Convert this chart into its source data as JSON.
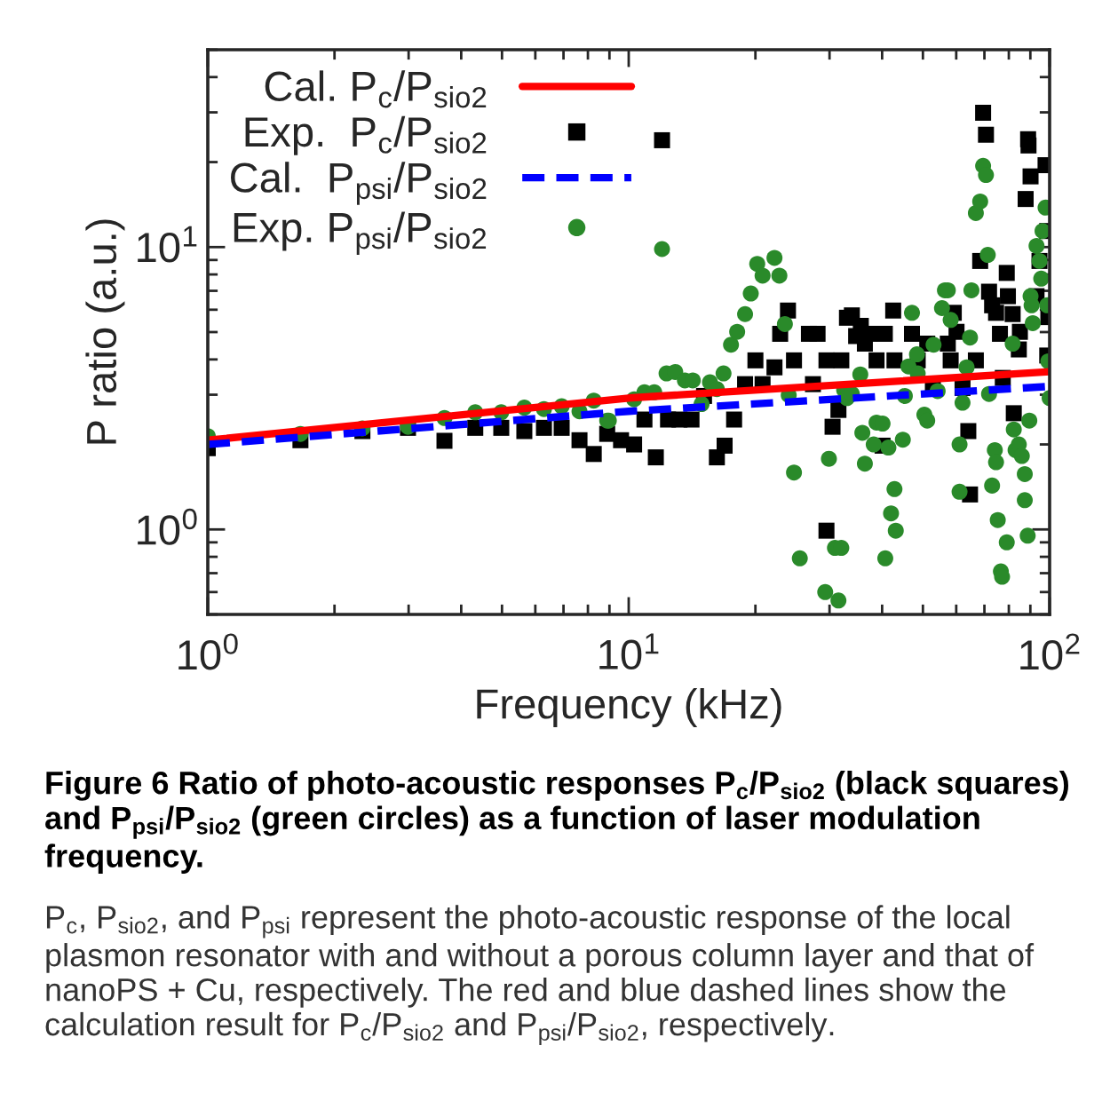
{
  "chart_data": {
    "type": "scatter",
    "xlabel": "Frequency (kHz)",
    "ylabel": "P ratio (a.u.)",
    "log": "xy",
    "xlim": [
      1,
      100
    ],
    "ylim": [
      0.5,
      50
    ],
    "xticks": [
      {
        "value": 1,
        "label": "10$^{0}$"
      },
      {
        "value": 10,
        "label": "10$^{1}$"
      },
      {
        "value": 100,
        "label": "10$^{2}$"
      }
    ],
    "yticks": [
      {
        "value": 1,
        "label": "10$^{0}$"
      },
      {
        "value": 10,
        "label": "10$^{1}$"
      }
    ],
    "grid": false,
    "legend": "top left",
    "series": [
      {
        "name": "Cal. P$_{c}$/P$_{sio2}$",
        "type": "line",
        "color": "#ff0000",
        "line_style": "solid",
        "marker": "none",
        "x": [
          1,
          10,
          100
        ],
        "values": [
          2.07,
          2.92,
          3.62
        ]
      },
      {
        "name": "Exp.  P$_{c}$/P$_{sio2}$",
        "color": "#000000",
        "marker": "square",
        "x": [
          1.0,
          1.66,
          2.33,
          2.99,
          3.65,
          4.32,
          4.98,
          5.65,
          6.29,
          6.93,
          7.64,
          8.26,
          8.89,
          9.59,
          10.3,
          10.9,
          11.6,
          12.0,
          12.4,
          13.2,
          14.1,
          15.1,
          16.2,
          16.9,
          17.8,
          18.9,
          20.0,
          20.8,
          22.2,
          22.9,
          23.9,
          24.7,
          26.8,
          27.4,
          28.1,
          29.5,
          29.5,
          30.5,
          31.5,
          32.0,
          33.0,
          33.9,
          34.7,
          35.6,
          36.4,
          37.3,
          38.8,
          40.1,
          40.6,
          42.5,
          42.8,
          47.1,
          48.6,
          51.2,
          52.8,
          57.3,
          58.2,
          59.2,
          60.1,
          62.1,
          64.1,
          64.7,
          65.6,
          66.8,
          68.4,
          69.5,
          70.6,
          71.8,
          73.0,
          74.6,
          76.2,
          77.4,
          79.1,
          79.6,
          81.7,
          82.2,
          84.5,
          85.0,
          87.7,
          88.9,
          89.1,
          90.1,
          93.1,
          94.6,
          97.8,
          98.7,
          99.3,
          98.7
        ],
        "values": [
          1.94,
          2.07,
          2.23,
          2.29,
          2.06,
          2.29,
          2.29,
          2.23,
          2.29,
          2.29,
          2.07,
          1.85,
          2.18,
          2.07,
          2.0,
          2.45,
          1.8,
          23.9,
          2.45,
          2.45,
          2.45,
          2.97,
          1.8,
          1.98,
          2.45,
          3.27,
          3.97,
          3.27,
          3.75,
          4.93,
          5.96,
          3.97,
          4.93,
          3.27,
          4.93,
          3.97,
          0.99,
          2.31,
          2.65,
          3.97,
          5.62,
          5.73,
          4.84,
          5.26,
          4.55,
          4.93,
          3.97,
          1.98,
          4.93,
          5.96,
          3.97,
          4.93,
          3.97,
          4.55,
          3.27,
          4.55,
          3.97,
          5.85,
          5.01,
          3.17,
          2.23,
          1.33,
          null,
          3.97,
          8.93,
          29.9,
          25.0,
          6.95,
          6.22,
          5.85,
          4.93,
          3.44,
          8.1,
          6.7,
          5.79,
          2.58,
          4.34,
          5.01,
          14.8,
          24.1,
          22.9,
          17.8,
          6.7,
          8.93,
          19.5,
          11.4,
          5.65,
          4.13
        ]
      },
      {
        "name": "Cal.  P$_{psi}$/P$_{sio2}$",
        "type": "line",
        "color": "#0000ff",
        "line_style": "dashed",
        "marker": "none",
        "x": [
          1,
          10,
          100
        ],
        "values": [
          2.0,
          2.62,
          3.21
        ]
      },
      {
        "name": "Exp. P$_{psi}$/P$_{sio2}$",
        "color": "#2a8a2a",
        "marker": "circle",
        "x": [
          1.0,
          1.66,
          2.33,
          2.99,
          3.65,
          4.32,
          4.98,
          5.65,
          6.29,
          6.93,
          7.64,
          8.26,
          8.89,
          10.3,
          8.97,
          10.9,
          11.5,
          12.0,
          12.3,
          12.9,
          13.6,
          14.2,
          14.9,
          15.6,
          16.2,
          16.8,
          17.5,
          18.1,
          18.9,
          19.5,
          20.2,
          20.8,
          22.2,
          22.8,
          23.5,
          24.0,
          24.7,
          25.5,
          28.1,
          29.3,
          29.9,
          30.9,
          31.5,
          32.0,
          32.5,
          33.0,
          33.9,
          35.5,
          35.9,
          36.4,
          38.2,
          38.8,
          40.1,
          40.7,
          41.4,
          42.0,
          42.8,
          43.1,
          44.8,
          45.3,
          46.2,
          47.1,
          48.4,
          48.6,
          50.4,
          51.2,
          53.0,
          54.2,
          55.5,
          56.4,
          57.3,
          58.2,
          61.1,
          61.1,
          62.1,
          63.5,
          64.7,
          65.2,
          66.8,
          68.4,
          69.5,
          70.6,
          71.3,
          71.8,
          73.0,
          74.1,
          74.6,
          75.3,
          76.6,
          77.1,
          79.1,
          80.4,
          81.7,
          82.2,
          83.0,
          84.5,
          85.9,
          87.3,
          87.3,
          88.7,
          89.5,
          90.1,
          90.6,
          91.2,
          93.1,
          94.6,
          95.5,
          96.2,
          97.8,
          98.7,
          99.3,
          100
        ],
        "values": [
          2.14,
          2.18,
          2.28,
          2.31,
          2.48,
          2.6,
          2.6,
          2.7,
          2.67,
          2.73,
          2.62,
          2.86,
          2.43,
          2.89,
          2.43,
          3.06,
          3.06,
          9.84,
          3.57,
          3.61,
          3.37,
          3.37,
          2.78,
          3.32,
          3.14,
          3.57,
          4.51,
          5.01,
          5.79,
          6.85,
          8.72,
          7.92,
          9.16,
          7.92,
          5.34,
          2.99,
          1.59,
          0.79,
          null,
          0.6,
          1.78,
          0.86,
          0.56,
          0.86,
          3.12,
          2.92,
          3.02,
          3.54,
          2.2,
          1.71,
          2.0,
          2.39,
          2.37,
          0.79,
          1.95,
          1.14,
          1.39,
          0.99,
          2.08,
          2.97,
          3.78,
          5.85,
          4.17,
          3.57,
          2.55,
          2.43,
          4.51,
          3.09,
          6.08,
          7.03,
          7.03,
          5.52,
          1.36,
          2.0,
          2.81,
          3.75,
          4.78,
          7.03,
          13.2,
          14.5,
          19.4,
          18.0,
          9.38,
          3.02,
          1.43,
          1.91,
          1.73,
          1.08,
          0.71,
          0.68,
          0.9,
          null,
          4.55,
          2.26,
          1.91,
          2.0,
          1.82,
          1.57,
          1.27,
          0.95,
          2.43,
          6.7,
          6.22,
          5.38,
          10.1,
          8.93,
          7.73,
          11.4,
          13.8,
          6.22,
          3.94,
          2.92
        ]
      }
    ],
    "annotations": [
      "Figure 6 Ratio of photo-acoustic responses P$_{c}$/P$_{sio2}$ (black squares) and P$_{psi}$/P$_{sio2}$ (green circles) as a function of laser modulation frequency.",
      "P$_{c}$, P$_{sio2}$, and P$_{psi}$ represent the photo-acoustic response of the local plasmon resonator with and without a porous column layer and that of nanoPS + Cu, respectively. The red and blue dashed lines show the calculation result for P$_{c}$/P$_{sio2}$ and P$_{psi}$/P$_{sio2}$, respectively."
    ]
  }
}
